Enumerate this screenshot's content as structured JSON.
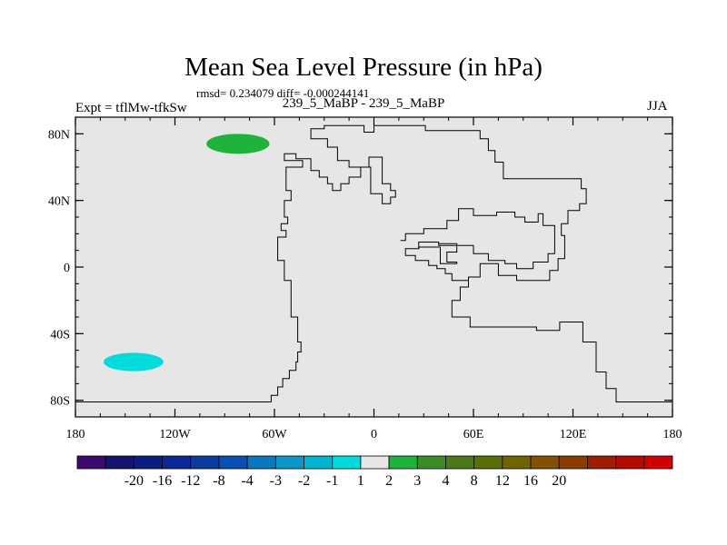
{
  "chart_data": {
    "type": "heatmap",
    "title": "Mean Sea Level Pressure (in hPa)",
    "stats_text": "rmsd= 0.234079 diff= -0.000244141",
    "left_label": "Expt = tflMw-tfkSw",
    "center_label": "239_5_MaBP - 239_5_MaBP",
    "right_label": "JJA",
    "x_axis": {
      "range": [
        -180,
        180
      ],
      "ticks": [
        {
          "value": -180,
          "label": "180"
        },
        {
          "value": -120,
          "label": "120W"
        },
        {
          "value": -60,
          "label": "60W"
        },
        {
          "value": 0,
          "label": "0"
        },
        {
          "value": 60,
          "label": "60E"
        },
        {
          "value": 120,
          "label": "120E"
        },
        {
          "value": 180,
          "label": "180"
        }
      ]
    },
    "y_axis": {
      "range": [
        -90,
        90
      ],
      "ticks": [
        {
          "value": 80,
          "label": "80N"
        },
        {
          "value": 40,
          "label": "40N"
        },
        {
          "value": 0,
          "label": "0"
        },
        {
          "value": -40,
          "label": "40S"
        },
        {
          "value": -80,
          "label": "80S"
        }
      ]
    },
    "background_color": "#e6e6e6",
    "anomaly_regions": [
      {
        "name": "north-anomaly",
        "lon": -82,
        "lat": 74,
        "lon_radius": 19,
        "lat_radius": 6,
        "color": "#1eb43c",
        "bin": "1 to 2"
      },
      {
        "name": "south-anomaly",
        "lon": -145,
        "lat": -57,
        "lon_radius": 18,
        "lat_radius": 5.5,
        "color": "#00dcdc",
        "bin": "-2 to -1"
      }
    ],
    "coastline_paths": [
      [
        [
          -180,
          -81
        ],
        [
          -62,
          -81
        ],
        [
          -62,
          -77
        ],
        [
          -58,
          -77
        ],
        [
          -58,
          -72
        ],
        [
          -55,
          -72
        ],
        [
          -55,
          -67
        ],
        [
          -51,
          -67
        ],
        [
          -51,
          -62
        ],
        [
          -47,
          -62
        ],
        [
          -47,
          -57
        ],
        [
          -46,
          -57
        ],
        [
          -46,
          -51
        ],
        [
          -44,
          -51
        ],
        [
          -44,
          -45
        ],
        [
          -46,
          -45
        ],
        [
          -46,
          -30
        ],
        [
          -50,
          -30
        ],
        [
          -50,
          -8
        ],
        [
          -54,
          -8
        ],
        [
          -54,
          4
        ],
        [
          -58,
          4
        ],
        [
          -58,
          18
        ],
        [
          -53,
          18
        ],
        [
          -53,
          22
        ],
        [
          -56,
          22
        ],
        [
          -56,
          26
        ],
        [
          -52,
          26
        ],
        [
          -52,
          30
        ],
        [
          -54,
          30
        ],
        [
          -54,
          40
        ],
        [
          -50,
          40
        ],
        [
          -50,
          46
        ],
        [
          -53,
          46
        ],
        [
          -53,
          60
        ],
        [
          -43,
          60
        ],
        [
          -43,
          64
        ],
        [
          -54,
          64
        ],
        [
          -54,
          68
        ],
        [
          -47,
          68
        ],
        [
          -47,
          65
        ],
        [
          -38,
          65
        ],
        [
          -38,
          58
        ],
        [
          -33,
          58
        ],
        [
          -33,
          54
        ],
        [
          -28,
          54
        ],
        [
          -28,
          50
        ],
        [
          -25,
          50
        ],
        [
          -25,
          46
        ],
        [
          -20,
          46
        ],
        [
          -20,
          50
        ],
        [
          -15,
          50
        ],
        [
          -15,
          54
        ],
        [
          -8,
          54
        ],
        [
          -8,
          60
        ],
        [
          -3,
          60
        ],
        [
          -3,
          66
        ],
        [
          5,
          66
        ],
        [
          5,
          50
        ],
        [
          10,
          50
        ],
        [
          10,
          46
        ],
        [
          13,
          46
        ],
        [
          13,
          42
        ],
        [
          10,
          42
        ],
        [
          10,
          38
        ],
        [
          5,
          38
        ],
        [
          5,
          44
        ],
        [
          -2,
          44
        ],
        [
          -2,
          60
        ],
        [
          -15,
          60
        ],
        [
          -15,
          64
        ],
        [
          -22,
          64
        ],
        [
          -22,
          72
        ],
        [
          -28,
          72
        ],
        [
          -28,
          77
        ],
        [
          -38,
          77
        ],
        [
          -38,
          83
        ],
        [
          -30,
          83
        ],
        [
          -30,
          85
        ],
        [
          -6,
          85
        ],
        [
          -6,
          81
        ],
        [
          0,
          81
        ],
        [
          0,
          85
        ],
        [
          31,
          85
        ],
        [
          31,
          82
        ],
        [
          64,
          82
        ],
        [
          64,
          77
        ],
        [
          69,
          77
        ],
        [
          69,
          70
        ],
        [
          73,
          70
        ],
        [
          73,
          63
        ],
        [
          78,
          63
        ],
        [
          78,
          53
        ],
        [
          125,
          53
        ],
        [
          125,
          47
        ],
        [
          128,
          47
        ],
        [
          128,
          38
        ],
        [
          124,
          38
        ],
        [
          124,
          34
        ],
        [
          117,
          34
        ],
        [
          117,
          26
        ],
        [
          113,
          26
        ],
        [
          113,
          19
        ],
        [
          115,
          19
        ],
        [
          115,
          5
        ],
        [
          111,
          5
        ],
        [
          111,
          -2
        ],
        [
          106,
          -2
        ],
        [
          106,
          -8
        ],
        [
          86,
          -8
        ],
        [
          86,
          -5
        ],
        [
          75,
          -5
        ],
        [
          75,
          2
        ],
        [
          64,
          2
        ],
        [
          64,
          -6
        ],
        [
          57,
          -6
        ],
        [
          57,
          -12
        ],
        [
          52,
          -12
        ],
        [
          52,
          -20
        ],
        [
          47,
          -20
        ],
        [
          47,
          -30
        ],
        [
          58,
          -30
        ],
        [
          58,
          -36
        ],
        [
          98,
          -36
        ],
        [
          98,
          -38
        ],
        [
          112,
          -38
        ],
        [
          112,
          -33
        ],
        [
          126,
          -33
        ],
        [
          126,
          -45
        ],
        [
          134,
          -45
        ],
        [
          134,
          -63
        ],
        [
          140,
          -63
        ],
        [
          140,
          -73
        ],
        [
          146,
          -73
        ],
        [
          146,
          -81
        ],
        [
          180,
          -81
        ]
      ],
      [
        [
          16,
          16
        ],
        [
          19,
          16
        ],
        [
          19,
          20
        ],
        [
          30,
          20
        ],
        [
          30,
          23
        ],
        [
          44,
          23
        ],
        [
          44,
          28
        ],
        [
          51,
          28
        ],
        [
          51,
          35
        ],
        [
          60,
          35
        ],
        [
          60,
          31
        ],
        [
          74,
          31
        ],
        [
          74,
          33
        ],
        [
          85,
          33
        ],
        [
          85,
          30
        ],
        [
          91,
          30
        ],
        [
          91,
          27
        ],
        [
          99,
          27
        ],
        [
          99,
          32
        ],
        [
          102,
          32
        ],
        [
          102,
          25
        ],
        [
          109,
          25
        ],
        [
          109,
          8
        ],
        [
          105,
          8
        ],
        [
          105,
          3
        ],
        [
          96,
          3
        ],
        [
          96,
          -1
        ],
        [
          86,
          -1
        ],
        [
          86,
          2
        ],
        [
          79,
          2
        ],
        [
          79,
          4
        ],
        [
          69,
          4
        ],
        [
          69,
          8
        ],
        [
          60,
          8
        ],
        [
          60,
          13
        ],
        [
          39,
          13
        ],
        [
          39,
          15
        ],
        [
          27,
          15
        ],
        [
          27,
          11
        ],
        [
          19,
          11
        ],
        [
          19,
          7
        ],
        [
          25,
          7
        ],
        [
          25,
          4
        ],
        [
          33,
          4
        ],
        [
          33,
          1
        ],
        [
          38,
          1
        ],
        [
          38,
          -1
        ],
        [
          43,
          -1
        ],
        [
          43,
          -4
        ],
        [
          47,
          -4
        ],
        [
          47,
          -8
        ],
        [
          57,
          -8
        ],
        [
          57,
          -10
        ]
      ],
      [
        [
          27,
          11
        ],
        [
          27,
          12
        ],
        [
          40,
          12
        ],
        [
          40,
          2
        ],
        [
          50,
          2
        ],
        [
          50,
          3
        ],
        [
          44,
          3
        ],
        [
          44,
          9
        ],
        [
          50,
          9
        ],
        [
          50,
          14
        ],
        [
          39,
          14
        ]
      ]
    ],
    "colorbar": {
      "colors": [
        "#3c0a6e",
        "#14146e",
        "#0a1e82",
        "#0a2896",
        "#0a3ca0",
        "#0a50b4",
        "#0a78be",
        "#0a96c8",
        "#00b4d2",
        "#00dcdc",
        "#e6e6e6",
        "#1eb43c",
        "#3c8c28",
        "#4b7819",
        "#5a6e0a",
        "#6e6400",
        "#825000",
        "#8c3c00",
        "#a01e00",
        "#b40a00",
        "#d20000"
      ],
      "labels": [
        "-20",
        "-16",
        "-12",
        "-8",
        "-4",
        "-3",
        "-2",
        "-1",
        "1",
        "2",
        "3",
        "4",
        "8",
        "12",
        "16",
        "20"
      ]
    }
  }
}
